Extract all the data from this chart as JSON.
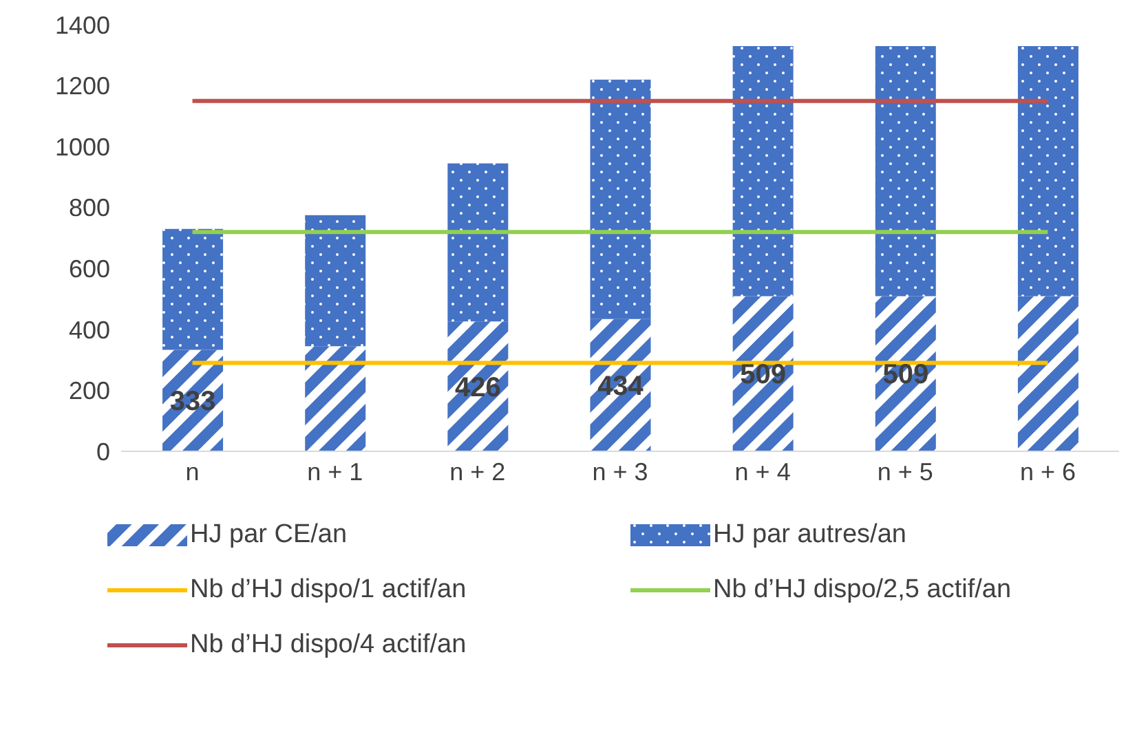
{
  "chart_data": {
    "type": "bar",
    "stacked": true,
    "categories": [
      "n",
      "n + 1",
      "n + 2",
      "n + 3",
      "n + 4",
      "n + 5",
      "n + 6"
    ],
    "ylim": [
      0,
      1400
    ],
    "yticks": [
      0,
      200,
      400,
      600,
      800,
      1000,
      1200,
      1400
    ],
    "grid": false,
    "legend": "bottom",
    "series": [
      {
        "name": "HJ par CE/an",
        "color": "#4472c4",
        "values": [
          333,
          345,
          426,
          434,
          509,
          509,
          509
        ],
        "value_labels": [
          "333",
          null,
          "426",
          "434",
          "509",
          "509",
          null
        ]
      },
      {
        "name": "HJ par autres/an",
        "color": "#4472c4",
        "values": [
          397,
          430,
          519,
          786,
          821,
          821,
          821
        ]
      },
      {
        "name": "Nb d’HJ dispo/1 actif/an",
        "type": "line",
        "color": "#ffc000",
        "values": [
          290,
          290,
          290,
          290,
          290,
          290,
          290
        ]
      },
      {
        "name": "Nb d’HJ dispo/2,5 actif/an",
        "type": "line",
        "color": "#92d050",
        "values": [
          720,
          720,
          720,
          720,
          720,
          720,
          720
        ]
      },
      {
        "name": "Nb d’HJ dispo/4 actif/an",
        "type": "line",
        "color": "#c0504d",
        "values": [
          1150,
          1150,
          1150,
          1150,
          1150,
          1150,
          1150
        ]
      }
    ]
  }
}
